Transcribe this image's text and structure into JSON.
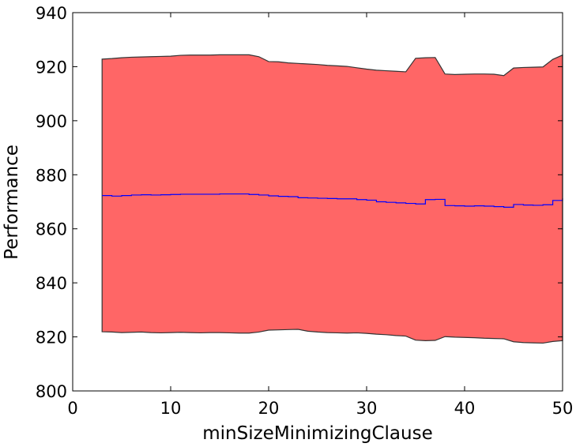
{
  "chart_data": {
    "type": "area",
    "title": "",
    "xlabel": "minSizeMinimizingClause",
    "ylabel": "Performance",
    "xlim": [
      0,
      50
    ],
    "ylim": [
      800,
      940
    ],
    "xticks": [
      0,
      10,
      20,
      30,
      40,
      50
    ],
    "yticks": [
      800,
      820,
      840,
      860,
      880,
      900,
      920,
      940
    ],
    "grid": false,
    "legend": "none",
    "x": [
      3,
      4,
      5,
      6,
      7,
      8,
      9,
      10,
      11,
      12,
      13,
      14,
      15,
      16,
      17,
      18,
      19,
      20,
      21,
      22,
      23,
      24,
      25,
      26,
      27,
      28,
      29,
      30,
      31,
      32,
      33,
      34,
      35,
      36,
      37,
      38,
      39,
      40,
      41,
      42,
      43,
      44,
      45,
      46,
      47,
      48,
      49,
      50
    ],
    "series": [
      {
        "role": "mean",
        "color": "#0000ff",
        "values": [
          872.3,
          872.1,
          872.3,
          872.5,
          872.6,
          872.5,
          872.6,
          872.7,
          872.8,
          872.8,
          872.8,
          872.8,
          872.9,
          872.9,
          872.9,
          872.7,
          872.5,
          872.2,
          872.0,
          871.9,
          871.5,
          871.4,
          871.3,
          871.2,
          871.1,
          871.1,
          870.8,
          870.6,
          870.0,
          869.8,
          869.6,
          869.4,
          869.2,
          870.8,
          870.9,
          868.6,
          868.5,
          868.4,
          868.5,
          868.4,
          868.2,
          868.0,
          869.0,
          868.8,
          868.7,
          868.9,
          870.5,
          871.3
        ]
      },
      {
        "role": "upper",
        "color": "#333333",
        "values": [
          922.8,
          923.0,
          923.3,
          923.5,
          923.6,
          923.7,
          923.8,
          923.9,
          924.2,
          924.3,
          924.3,
          924.3,
          924.4,
          924.4,
          924.4,
          924.4,
          923.7,
          921.9,
          921.8,
          921.4,
          921.2,
          921.0,
          920.8,
          920.5,
          920.3,
          920.1,
          919.6,
          919.1,
          918.7,
          918.5,
          918.3,
          918.1,
          923.1,
          923.3,
          923.4,
          917.3,
          917.1,
          917.2,
          917.3,
          917.3,
          917.2,
          916.7,
          919.5,
          919.7,
          919.8,
          919.9,
          922.7,
          924.3
        ]
      },
      {
        "role": "lower",
        "color": "#333333",
        "values": [
          821.9,
          821.8,
          821.6,
          821.7,
          821.8,
          821.6,
          821.5,
          821.6,
          821.7,
          821.6,
          821.5,
          821.6,
          821.6,
          821.5,
          821.4,
          821.4,
          821.8,
          822.5,
          822.6,
          822.7,
          822.8,
          822.1,
          821.8,
          821.6,
          821.5,
          821.4,
          821.5,
          821.3,
          821.0,
          820.8,
          820.5,
          820.3,
          818.8,
          818.6,
          818.7,
          820.1,
          819.9,
          819.8,
          819.7,
          819.5,
          819.4,
          819.3,
          818.2,
          817.9,
          817.8,
          817.7,
          818.3,
          818.6
        ]
      }
    ],
    "fill_color": "#ff6666",
    "spine_color": "#000000"
  }
}
